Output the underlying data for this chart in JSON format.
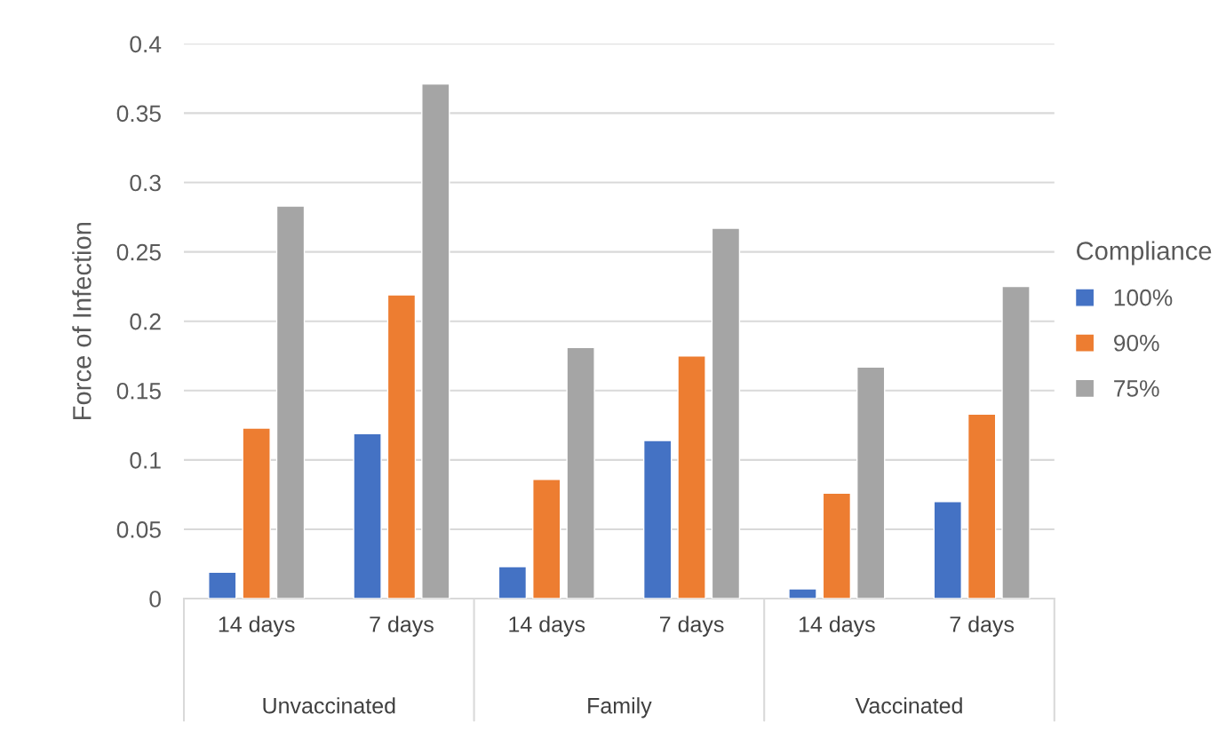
{
  "chart_data": {
    "type": "bar",
    "ylabel": "Force of Infection",
    "legend_title": "Compliance",
    "legend": "right",
    "grid": "y",
    "categories": [
      "14 days",
      "7 days",
      "14 days",
      "7 days",
      "14 days",
      "7 days"
    ],
    "annotations": [
      "Unvaccinated",
      "Family",
      "Vaccinated"
    ],
    "ylim": [
      0,
      0.4
    ],
    "yticks": [
      0,
      0.05,
      0.1,
      0.15,
      0.2,
      0.25,
      0.3,
      0.35,
      0.4
    ],
    "series": [
      {
        "name": "100%",
        "color": "#4472c4",
        "values": [
          0.019,
          0.119,
          0.023,
          0.114,
          0.007,
          0.07
        ]
      },
      {
        "name": "90%",
        "color": "#ed7d31",
        "values": [
          0.123,
          0.219,
          0.086,
          0.175,
          0.076,
          0.133
        ]
      },
      {
        "name": "75%",
        "color": "#a5a5a5",
        "values": [
          0.283,
          0.371,
          0.181,
          0.267,
          0.167,
          0.225
        ]
      }
    ]
  }
}
